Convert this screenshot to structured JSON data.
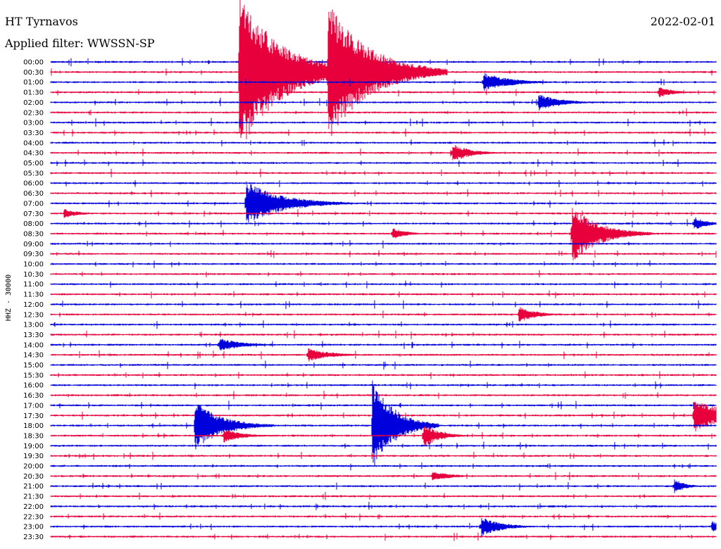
{
  "header": {
    "station": "HT Tyrnavos",
    "date": "2022-02-01",
    "filter": "Applied filter: WWSSN-SP"
  },
  "colors": {
    "blue": "#0000dd",
    "red": "#e8003c"
  },
  "chart_data": {
    "type": "helicorder",
    "ylabel": "HHZ - 30000",
    "rows": [
      "00:00",
      "00:30",
      "01:00",
      "01:30",
      "02:00",
      "02:30",
      "03:00",
      "03:30",
      "04:00",
      "04:30",
      "05:00",
      "05:30",
      "06:00",
      "06:30",
      "07:00",
      "07:30",
      "08:00",
      "08:30",
      "09:00",
      "09:30",
      "10:00",
      "10:30",
      "11:00",
      "11:30",
      "12:00",
      "12:30",
      "13:00",
      "13:30",
      "14:00",
      "14:30",
      "15:00",
      "15:30",
      "16:00",
      "16:30",
      "17:00",
      "17:30",
      "18:00",
      "18:30",
      "19:00",
      "19:30",
      "20:00",
      "20:30",
      "21:00",
      "21:30",
      "22:00",
      "22:30",
      "23:00",
      "23:30"
    ],
    "color_cycle": [
      "blue",
      "red"
    ],
    "row_minutes": 30,
    "events": [
      {
        "row": 1,
        "minute": 8.5,
        "amp": 115,
        "dur": 1.8
      },
      {
        "row": 1,
        "minute": 12.5,
        "amp": 100,
        "dur": 1.8
      },
      {
        "row": 2,
        "minute": 19.5,
        "amp": 14,
        "dur": 1.2
      },
      {
        "row": 3,
        "minute": 27.4,
        "amp": 9,
        "dur": 0.6
      },
      {
        "row": 4,
        "minute": 22.0,
        "amp": 12,
        "dur": 1.0
      },
      {
        "row": 9,
        "minute": 18.1,
        "amp": 14,
        "dur": 0.8
      },
      {
        "row": 14,
        "minute": 8.8,
        "amp": 32,
        "dur": 1.6
      },
      {
        "row": 15,
        "minute": 0.6,
        "amp": 7,
        "dur": 0.7
      },
      {
        "row": 17,
        "minute": 23.5,
        "amp": 42,
        "dur": 1.2
      },
      {
        "row": 17,
        "minute": 15.4,
        "amp": 9,
        "dur": 0.6
      },
      {
        "row": 16,
        "minute": 29.0,
        "amp": 10,
        "dur": 0.6
      },
      {
        "row": 25,
        "minute": 21.1,
        "amp": 13,
        "dur": 0.7
      },
      {
        "row": 28,
        "minute": 7.6,
        "amp": 10,
        "dur": 1.0
      },
      {
        "row": 29,
        "minute": 11.6,
        "amp": 10,
        "dur": 1.0
      },
      {
        "row": 35,
        "minute": 29.0,
        "amp": 24,
        "dur": 1.5
      },
      {
        "row": 36,
        "minute": 6.5,
        "amp": 35,
        "dur": 1.2
      },
      {
        "row": 36,
        "minute": 14.5,
        "amp": 65,
        "dur": 1.0
      },
      {
        "row": 37,
        "minute": 7.8,
        "amp": 10,
        "dur": 0.8
      },
      {
        "row": 37,
        "minute": 16.8,
        "amp": 18,
        "dur": 0.7
      },
      {
        "row": 41,
        "minute": 17.2,
        "amp": 7,
        "dur": 0.9
      },
      {
        "row": 42,
        "minute": 28.1,
        "amp": 11,
        "dur": 0.5
      },
      {
        "row": 46,
        "minute": 19.4,
        "amp": 15,
        "dur": 0.9
      },
      {
        "row": 46,
        "minute": 29.8,
        "amp": 9,
        "dur": 0.5
      }
    ]
  }
}
